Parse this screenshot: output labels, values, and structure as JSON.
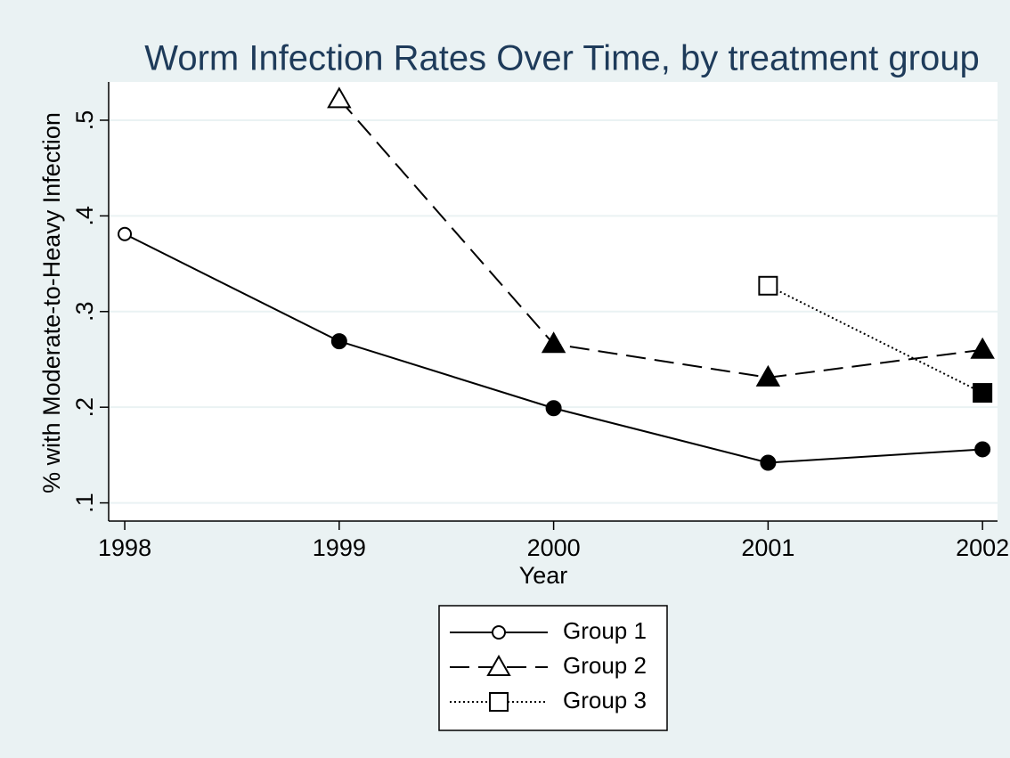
{
  "chart_data": {
    "type": "line",
    "title": "Worm Infection Rates Over Time, by treatment group",
    "x_label": "Year",
    "y_label": "% with Moderate-to-Heavy Infection",
    "x": [
      1998,
      1999,
      2000,
      2001,
      2002
    ],
    "series": [
      {
        "name": "Group 1",
        "color": "#000000",
        "line_style": "solid",
        "marker": "circle",
        "values": [
          0.381,
          0.269,
          0.199,
          0.142,
          0.156
        ]
      },
      {
        "name": "Group 2",
        "color": "#000000",
        "line_style": "dashed",
        "marker": "triangle",
        "values": [
          null,
          0.522,
          0.266,
          0.231,
          0.26
        ]
      },
      {
        "name": "Group 3",
        "color": "#000000",
        "line_style": "dotted",
        "marker": "square",
        "values": [
          null,
          null,
          null,
          0.327,
          0.215
        ]
      }
    ],
    "xlim": [
      1997.925,
      2002.07
    ],
    "xticks": [
      1998,
      1999,
      2000,
      2001,
      2002
    ],
    "ylim": [
      0.081,
      0.54
    ],
    "yticks": [
      {
        "value": 0.1,
        "label": ".1"
      },
      {
        "value": 0.2,
        "label": ".2"
      },
      {
        "value": 0.3,
        "label": ".3"
      },
      {
        "value": 0.4,
        "label": ".4"
      },
      {
        "value": 0.5,
        "label": ".5"
      }
    ],
    "grid": true,
    "legend_position": "bottom"
  }
}
